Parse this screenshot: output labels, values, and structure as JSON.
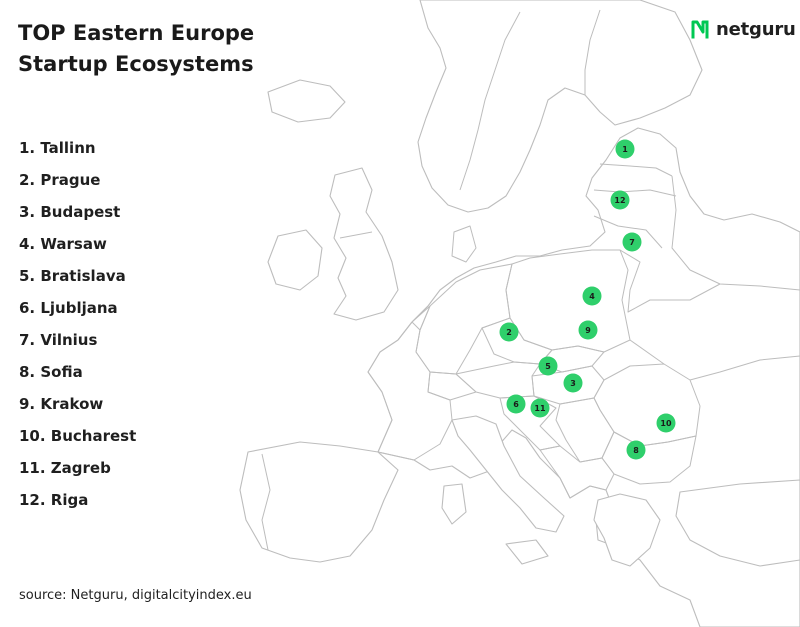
{
  "header": {
    "title": "TOP Eastern Europe\nStartup Ecosystems"
  },
  "brand": {
    "name": "netguru",
    "icon": "netguru-n-logo-icon",
    "color": "#00c853"
  },
  "ranking": [
    {
      "rank": 1,
      "label": "1. Tallinn"
    },
    {
      "rank": 2,
      "label": "2. Prague"
    },
    {
      "rank": 3,
      "label": "3. Budapest"
    },
    {
      "rank": 4,
      "label": "4. Warsaw"
    },
    {
      "rank": 5,
      "label": "5. Bratislava"
    },
    {
      "rank": 6,
      "label": "6. Ljubljana"
    },
    {
      "rank": 7,
      "label": "7. Vilnius"
    },
    {
      "rank": 8,
      "label": "8. Sofia"
    },
    {
      "rank": 9,
      "label": "9. Krakow"
    },
    {
      "rank": 10,
      "label": "10. Bucharest"
    },
    {
      "rank": 11,
      "label": "11. Zagreb"
    },
    {
      "rank": 12,
      "label": "12. Riga"
    }
  ],
  "markers": [
    {
      "rank": "1"
    },
    {
      "rank": "12"
    },
    {
      "rank": "7"
    },
    {
      "rank": "4"
    },
    {
      "rank": "9"
    },
    {
      "rank": "2"
    },
    {
      "rank": "5"
    },
    {
      "rank": "3"
    },
    {
      "rank": "6"
    },
    {
      "rank": "11"
    },
    {
      "rank": "10"
    },
    {
      "rank": "8"
    }
  ],
  "marker_color": "#2fcf6b",
  "source": "source: Netguru, digitalcityindex.eu"
}
